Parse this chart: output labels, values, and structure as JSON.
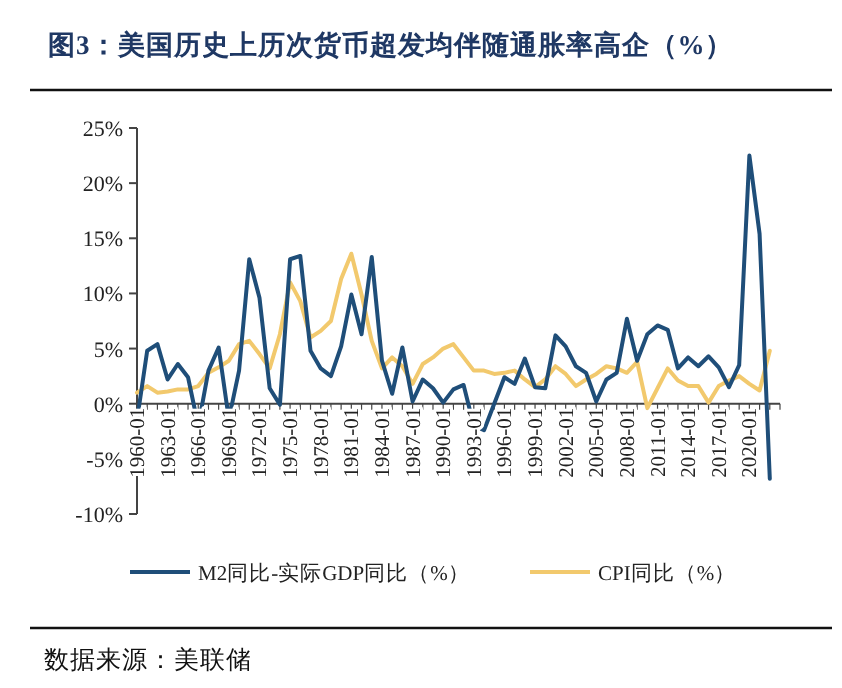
{
  "chart_data": {
    "type": "line",
    "title": "图3：美国历史上历次货币超发均伴随通胀率高企（%）",
    "categories": [
      "1960-01",
      null,
      null,
      "1963-01",
      null,
      null,
      "1966-01",
      null,
      null,
      "1969-01",
      null,
      null,
      "1972-01",
      null,
      null,
      "1975-01",
      null,
      null,
      "1978-01",
      null,
      null,
      "1981-01",
      null,
      null,
      "1984-01",
      null,
      null,
      "1987-01",
      null,
      null,
      "1990-01",
      null,
      null,
      "1993-01",
      null,
      null,
      "1996-01",
      null,
      null,
      "1999-01",
      null,
      null,
      "2002-01",
      null,
      null,
      "2005-01",
      null,
      null,
      "2008-01",
      null,
      null,
      "2011-01",
      null,
      null,
      "2014-01",
      null,
      null,
      "2017-01",
      null,
      null,
      "2020-01",
      null,
      null
    ],
    "series": [
      {
        "name": "M2同比-实际GDP同比（%）",
        "color": "#1f4e79",
        "values": [
          -1.5,
          4.8,
          5.4,
          2.2,
          3.6,
          2.4,
          -2.0,
          3.0,
          5.1,
          -1.4,
          3.0,
          13.1,
          9.6,
          1.4,
          -0.1,
          13.1,
          13.4,
          4.8,
          3.2,
          2.5,
          5.2,
          9.9,
          6.3,
          13.3,
          3.9,
          0.9,
          5.1,
          0.2,
          2.2,
          1.4,
          0.1,
          1.3,
          1.7,
          -2.0,
          -2.4,
          0.0,
          2.4,
          1.8,
          4.1,
          1.5,
          1.4,
          6.2,
          5.2,
          3.4,
          2.8,
          0.2,
          2.2,
          2.8,
          7.7,
          3.9,
          6.3,
          7.1,
          6.7,
          3.2,
          4.2,
          3.4,
          4.3,
          3.3,
          1.5,
          3.5,
          22.5,
          15.4,
          -6.8
        ]
      },
      {
        "name": "CPI同比（%）",
        "color": "#f2c96d",
        "values": [
          1.0,
          1.6,
          1.0,
          1.1,
          1.3,
          1.3,
          1.6,
          2.8,
          3.3,
          3.9,
          5.4,
          5.7,
          4.5,
          3.2,
          6.3,
          11.0,
          9.3,
          6.0,
          6.6,
          7.5,
          11.3,
          13.6,
          9.9,
          5.7,
          3.2,
          4.2,
          3.4,
          1.8,
          3.6,
          4.2,
          5.0,
          5.4,
          4.2,
          3.0,
          3.0,
          2.7,
          2.8,
          3.0,
          2.2,
          1.5,
          2.2,
          3.4,
          2.7,
          1.6,
          2.2,
          2.7,
          3.4,
          3.2,
          2.8,
          3.8,
          -0.4,
          1.4,
          3.2,
          2.1,
          1.6,
          1.6,
          0.1,
          1.6,
          2.1,
          2.5,
          1.8,
          1.2,
          4.8
        ]
      }
    ],
    "ylim": [
      -10,
      25
    ],
    "yticks": [
      {
        "value": -10,
        "label": "-10%"
      },
      {
        "value": -5,
        "label": "-5%"
      },
      {
        "value": 0,
        "label": "0%"
      },
      {
        "value": 5,
        "label": "5%"
      },
      {
        "value": 10,
        "label": "10%"
      },
      {
        "value": 15,
        "label": "15%"
      },
      {
        "value": 20,
        "label": "20%"
      },
      {
        "value": 25,
        "label": "25%"
      }
    ],
    "legend": "bottom",
    "grid": false,
    "marker": "none",
    "line_style": "solid",
    "annotations": [
      "数据来源：美联储"
    ]
  }
}
